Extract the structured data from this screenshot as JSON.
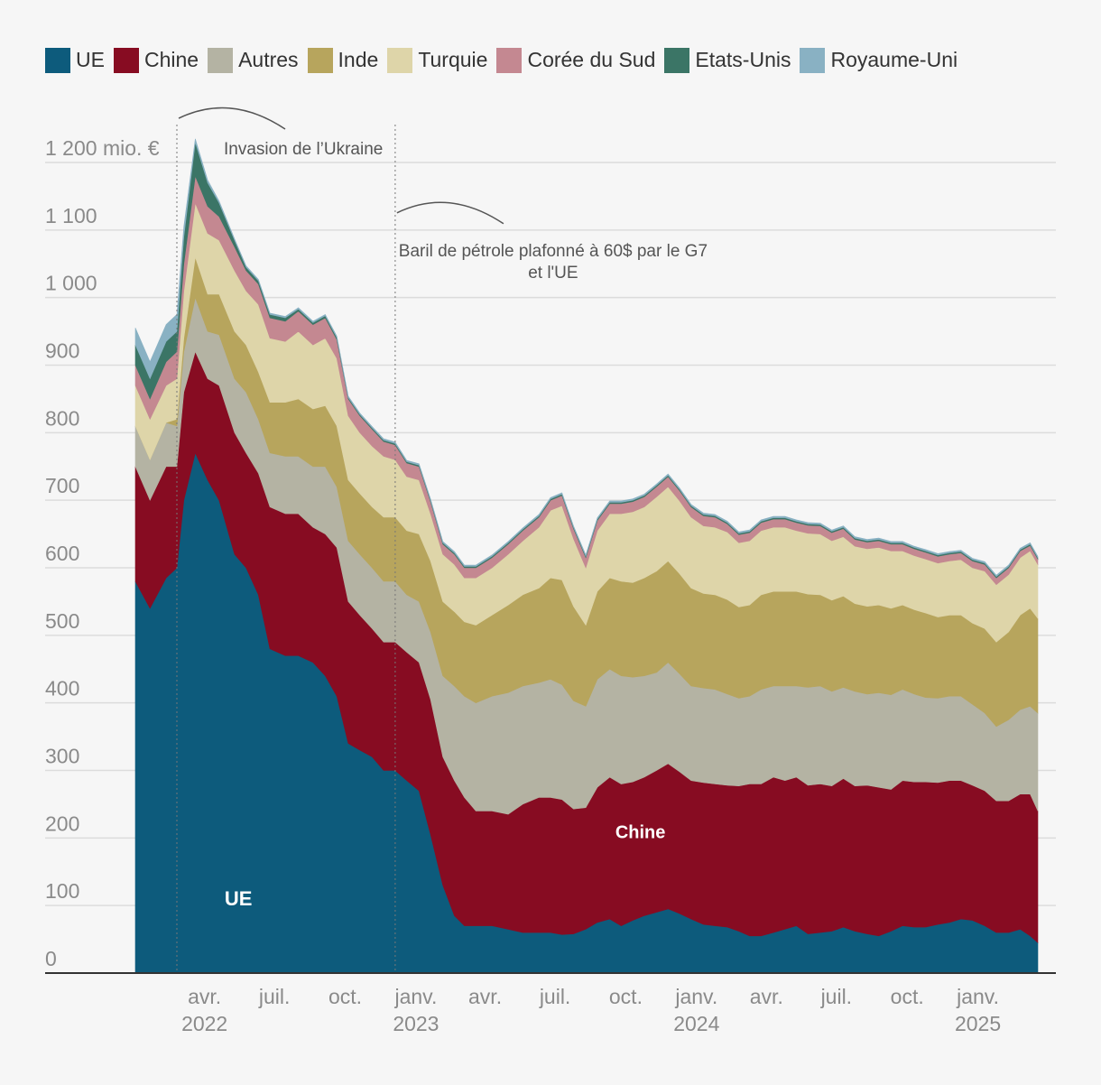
{
  "chart_data": {
    "type": "area",
    "stacked": true,
    "unit_label": "mio. €",
    "ylim": [
      0,
      1250
    ],
    "y_ticks": [
      {
        "value": 0,
        "label": "0"
      },
      {
        "value": 100,
        "label": "100"
      },
      {
        "value": 200,
        "label": "200"
      },
      {
        "value": 300,
        "label": "300"
      },
      {
        "value": 400,
        "label": "400"
      },
      {
        "value": 500,
        "label": "500"
      },
      {
        "value": 600,
        "label": "600"
      },
      {
        "value": 700,
        "label": "700"
      },
      {
        "value": 800,
        "label": "800"
      },
      {
        "value": 900,
        "label": "900"
      },
      {
        "value": 1000,
        "label": "1 000"
      },
      {
        "value": 1100,
        "label": "1 100"
      },
      {
        "value": 1200,
        "label": "1 200 mio. €"
      }
    ],
    "x_ticks": [
      {
        "date": "2022-04-01",
        "label": "avr.",
        "year": "2022"
      },
      {
        "date": "2022-07-01",
        "label": "juil.",
        "year": ""
      },
      {
        "date": "2022-10-01",
        "label": "oct.",
        "year": ""
      },
      {
        "date": "2023-01-01",
        "label": "janv.",
        "year": "2023"
      },
      {
        "date": "2023-04-01",
        "label": "avr.",
        "year": ""
      },
      {
        "date": "2023-07-01",
        "label": "juil.",
        "year": ""
      },
      {
        "date": "2023-10-01",
        "label": "oct.",
        "year": ""
      },
      {
        "date": "2024-01-01",
        "label": "janv.",
        "year": "2024"
      },
      {
        "date": "2024-04-01",
        "label": "avr.",
        "year": ""
      },
      {
        "date": "2024-07-01",
        "label": "juil.",
        "year": ""
      },
      {
        "date": "2024-10-01",
        "label": "oct.",
        "year": ""
      },
      {
        "date": "2025-01-01",
        "label": "janv.",
        "year": "2025"
      }
    ],
    "x_range": [
      "2022-01-01",
      "2025-03-20"
    ],
    "x": [
      "2022-01-01",
      "2022-01-20",
      "2022-02-10",
      "2022-02-24",
      "2022-03-05",
      "2022-03-20",
      "2022-04-05",
      "2022-04-20",
      "2022-05-10",
      "2022-05-25",
      "2022-06-10",
      "2022-06-25",
      "2022-07-15",
      "2022-08-01",
      "2022-08-20",
      "2022-09-05",
      "2022-09-20",
      "2022-10-05",
      "2022-10-20",
      "2022-11-05",
      "2022-11-20",
      "2022-12-05",
      "2022-12-20",
      "2023-01-05",
      "2023-01-20",
      "2023-02-05",
      "2023-02-20",
      "2023-03-05",
      "2023-03-20",
      "2023-04-10",
      "2023-05-01",
      "2023-05-20",
      "2023-06-10",
      "2023-06-25",
      "2023-07-10",
      "2023-07-25",
      "2023-08-10",
      "2023-08-25",
      "2023-09-10",
      "2023-09-25",
      "2023-10-10",
      "2023-10-25",
      "2023-11-10",
      "2023-11-25",
      "2023-12-10",
      "2023-12-25",
      "2024-01-10",
      "2024-01-25",
      "2024-02-10",
      "2024-02-25",
      "2024-03-10",
      "2024-03-25",
      "2024-04-10",
      "2024-04-25",
      "2024-05-10",
      "2024-05-25",
      "2024-06-10",
      "2024-06-25",
      "2024-07-10",
      "2024-07-25",
      "2024-08-10",
      "2024-08-25",
      "2024-09-10",
      "2024-09-25",
      "2024-10-10",
      "2024-10-25",
      "2024-11-10",
      "2024-11-25",
      "2024-12-10",
      "2024-12-25",
      "2025-01-10",
      "2025-01-25",
      "2025-02-10",
      "2025-02-25",
      "2025-03-10",
      "2025-03-20"
    ],
    "series": [
      {
        "name": "UE",
        "color": "#0d5b7c",
        "values": [
          580,
          540,
          585,
          600,
          700,
          770,
          730,
          700,
          620,
          600,
          560,
          480,
          470,
          470,
          460,
          440,
          410,
          340,
          330,
          320,
          300,
          300,
          285,
          270,
          205,
          130,
          85,
          70,
          70,
          70,
          65,
          60,
          60,
          60,
          57,
          58,
          65,
          75,
          80,
          70,
          78,
          85,
          90,
          95,
          88,
          80,
          72,
          70,
          68,
          62,
          55,
          55,
          60,
          65,
          70,
          58,
          60,
          62,
          68,
          62,
          58,
          55,
          62,
          70,
          68,
          68,
          72,
          75,
          80,
          78,
          70,
          60,
          60,
          65,
          55,
          45
        ]
      },
      {
        "name": "Chine",
        "color": "#870c22",
        "values": [
          170,
          160,
          165,
          150,
          160,
          150,
          150,
          170,
          180,
          170,
          180,
          210,
          210,
          210,
          200,
          210,
          220,
          210,
          200,
          190,
          190,
          190,
          190,
          190,
          200,
          190,
          200,
          190,
          170,
          170,
          170,
          190,
          200,
          200,
          200,
          185,
          180,
          200,
          210,
          210,
          205,
          205,
          210,
          215,
          210,
          205,
          210,
          210,
          210,
          215,
          225,
          225,
          230,
          220,
          220,
          220,
          220,
          215,
          220,
          215,
          220,
          220,
          210,
          215,
          215,
          215,
          210,
          210,
          205,
          200,
          200,
          195,
          195,
          200,
          210,
          195
        ]
      },
      {
        "name": "Autres",
        "color": "#b4b3a3",
        "values": [
          60,
          60,
          65,
          60,
          60,
          80,
          70,
          75,
          80,
          90,
          80,
          80,
          85,
          85,
          90,
          100,
          90,
          90,
          90,
          90,
          90,
          90,
          85,
          90,
          100,
          120,
          140,
          150,
          160,
          170,
          180,
          175,
          170,
          175,
          170,
          160,
          150,
          160,
          160,
          160,
          155,
          150,
          145,
          150,
          145,
          140,
          140,
          140,
          135,
          130,
          130,
          140,
          135,
          140,
          135,
          145,
          145,
          140,
          135,
          140,
          135,
          140,
          140,
          135,
          130,
          125,
          125,
          125,
          125,
          120,
          115,
          110,
          120,
          125,
          130,
          145
        ]
      },
      {
        "name": "Inde",
        "color": "#b7a55d",
        "values": [
          0,
          0,
          0,
          10,
          20,
          60,
          55,
          60,
          70,
          70,
          70,
          75,
          80,
          85,
          85,
          90,
          90,
          90,
          90,
          90,
          95,
          95,
          95,
          100,
          105,
          110,
          110,
          110,
          115,
          120,
          130,
          135,
          140,
          150,
          155,
          140,
          120,
          130,
          135,
          140,
          140,
          145,
          150,
          150,
          148,
          145,
          140,
          140,
          140,
          135,
          135,
          140,
          140,
          140,
          140,
          138,
          135,
          135,
          135,
          130,
          130,
          130,
          128,
          125,
          125,
          125,
          120,
          120,
          120,
          120,
          125,
          125,
          130,
          140,
          145,
          140
        ]
      },
      {
        "name": "Turquie",
        "color": "#ded5a9",
        "values": [
          60,
          60,
          55,
          60,
          70,
          80,
          90,
          80,
          90,
          80,
          100,
          95,
          90,
          100,
          95,
          100,
          100,
          95,
          90,
          90,
          90,
          85,
          80,
          80,
          70,
          70,
          70,
          65,
          70,
          70,
          75,
          80,
          90,
          100,
          110,
          100,
          85,
          90,
          95,
          100,
          105,
          105,
          110,
          110,
          108,
          105,
          100,
          100,
          100,
          95,
          95,
          95,
          95,
          95,
          90,
          90,
          90,
          88,
          88,
          85,
          85,
          85,
          85,
          80,
          80,
          80,
          80,
          80,
          82,
          82,
          85,
          85,
          85,
          85,
          85,
          80
        ]
      },
      {
        "name": "Corée du Sud",
        "color": "#c48891",
        "values": [
          30,
          30,
          35,
          40,
          40,
          40,
          40,
          35,
          35,
          30,
          30,
          30,
          30,
          30,
          30,
          30,
          28,
          25,
          25,
          25,
          22,
          22,
          20,
          20,
          18,
          15,
          15,
          15,
          15,
          15,
          15,
          15,
          15,
          15,
          15,
          15,
          15,
          15,
          15,
          15,
          15,
          15,
          15,
          15,
          15,
          15,
          15,
          15,
          12,
          12,
          12,
          12,
          12,
          12,
          12,
          12,
          12,
          12,
          12,
          10,
          10,
          10,
          10,
          10,
          10,
          10,
          10,
          10,
          10,
          10,
          10,
          10,
          10,
          10,
          8,
          8
        ]
      },
      {
        "name": "Etats-Unis",
        "color": "#3b7566",
        "values": [
          30,
          30,
          30,
          30,
          40,
          50,
          35,
          20,
          10,
          5,
          5,
          5,
          5,
          3,
          3,
          3,
          3,
          2,
          2,
          2,
          2,
          2,
          2,
          2,
          2,
          2,
          2,
          2,
          2,
          2,
          2,
          2,
          2,
          2,
          2,
          2,
          2,
          2,
          2,
          2,
          2,
          2,
          2,
          2,
          2,
          2,
          2,
          2,
          2,
          2,
          2,
          2,
          2,
          2,
          2,
          2,
          2,
          2,
          2,
          2,
          2,
          2,
          2,
          2,
          2,
          2,
          2,
          2,
          2,
          2,
          2,
          2,
          2,
          2,
          2,
          2
        ]
      },
      {
        "name": "Royaume-Uni",
        "color": "#89b1c3",
        "values": [
          25,
          25,
          25,
          25,
          15,
          5,
          4,
          3,
          2,
          2,
          2,
          2,
          2,
          2,
          2,
          2,
          2,
          2,
          2,
          2,
          2,
          2,
          2,
          2,
          2,
          2,
          2,
          2,
          2,
          2,
          2,
          2,
          2,
          2,
          2,
          2,
          2,
          2,
          2,
          2,
          2,
          2,
          2,
          2,
          2,
          2,
          2,
          2,
          2,
          2,
          2,
          2,
          2,
          2,
          2,
          2,
          2,
          2,
          2,
          2,
          2,
          2,
          2,
          2,
          2,
          2,
          2,
          2,
          2,
          2,
          2,
          2,
          2,
          2,
          2,
          2
        ]
      }
    ],
    "area_labels": [
      {
        "series": "UE",
        "text": "UE",
        "date": "2022-05-15",
        "value": 100
      },
      {
        "series": "Chine",
        "text": "Chine",
        "date": "2023-10-20",
        "value": 200
      }
    ],
    "annotations": [
      {
        "date": "2022-02-24",
        "lines": [
          "Invasion de l’Ukraine"
        ],
        "value": 1220
      },
      {
        "date": "2022-12-05",
        "lines": [
          "Baril de pétrole plafonné à 60$ par le G7",
          "et l'UE"
        ],
        "value": 1080
      }
    ]
  }
}
